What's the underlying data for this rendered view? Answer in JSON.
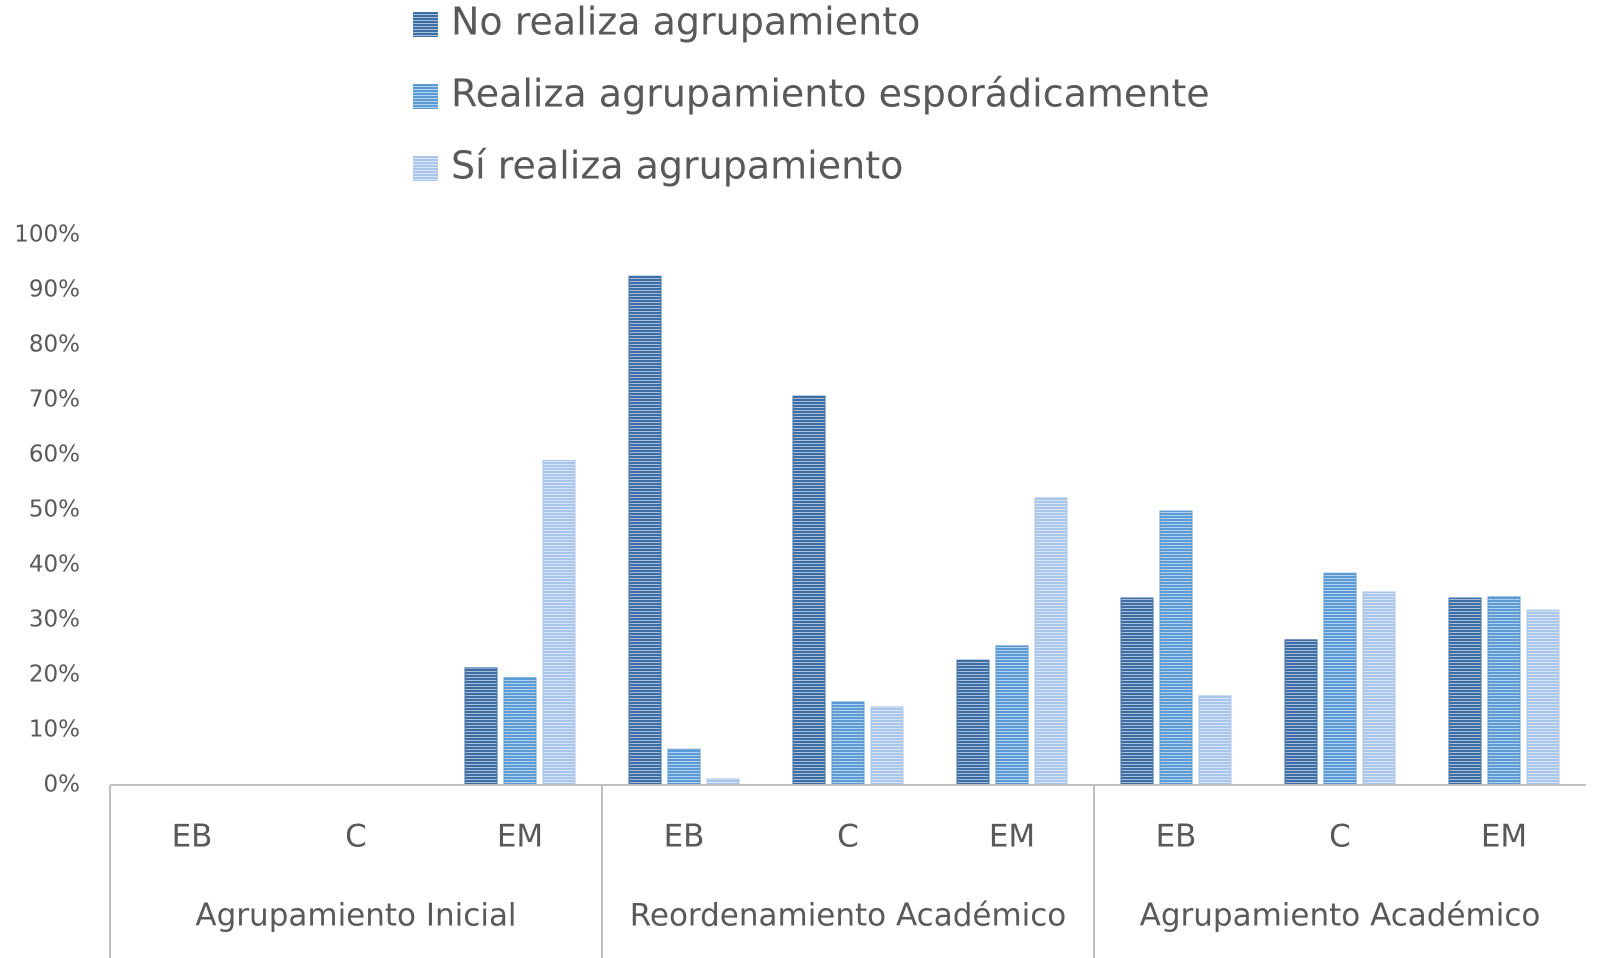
{
  "chart_data": {
    "type": "bar",
    "categories": [
      "EB",
      "C",
      "EM",
      "EB",
      "C",
      "EM",
      "EB",
      "C",
      "EM"
    ],
    "category_groups": [
      "Agrupamiento Inicial",
      "Reordenamiento Académico",
      "Agrupamiento Académico"
    ],
    "series": [
      {
        "name": "No realiza agrupamiento",
        "color": "#3e6ea6",
        "values": [
          0,
          0,
          21.3,
          92.5,
          70.7,
          22.7,
          34,
          26.4,
          34
        ]
      },
      {
        "name": "Realiza agrupamiento esporádicamente",
        "color": "#5b9bd5",
        "values": [
          0,
          0,
          19.5,
          6.5,
          15.1,
          25.3,
          49.8,
          38.5,
          34.2
        ]
      },
      {
        "name": "Sí realiza agrupamiento",
        "color": "#a9c5ea",
        "values": [
          0,
          0,
          59,
          1.1,
          14.2,
          52.2,
          16.2,
          35.1,
          31.8
        ]
      }
    ],
    "ylim": [
      0,
      100
    ],
    "yticks": [
      {
        "value": 0,
        "label": "0%"
      },
      {
        "value": 10,
        "label": "10%"
      },
      {
        "value": 20,
        "label": "20%"
      },
      {
        "value": 30,
        "label": "30%"
      },
      {
        "value": 40,
        "label": "40%"
      },
      {
        "value": 50,
        "label": "50%"
      },
      {
        "value": 60,
        "label": "60%"
      },
      {
        "value": 70,
        "label": "70%"
      },
      {
        "value": 80,
        "label": "80%"
      },
      {
        "value": 90,
        "label": "90%"
      },
      {
        "value": 100,
        "label": "100%"
      }
    ],
    "grid": false,
    "legend": "top"
  }
}
